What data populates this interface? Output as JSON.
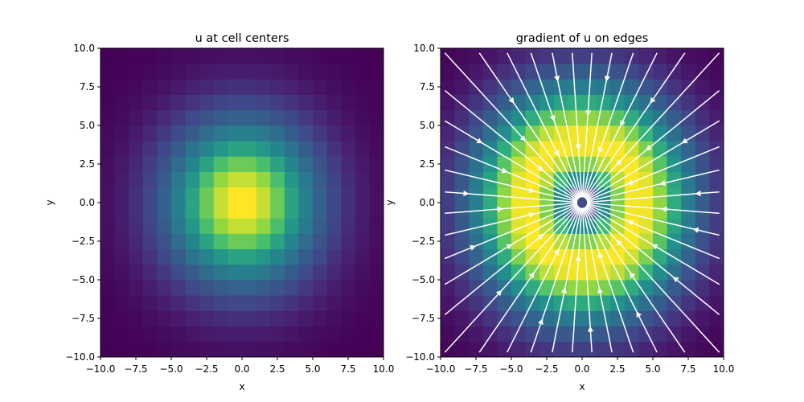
{
  "chart_data": [
    {
      "type": "heatmap",
      "title": "u at cell centers",
      "xlabel": "x",
      "ylabel": "y",
      "xlim": [
        -10,
        10
      ],
      "ylim": [
        -10,
        10
      ],
      "xticks": [
        "−10.0",
        "−7.5",
        "−5.0",
        "−2.5",
        "0.0",
        "2.5",
        "5.0",
        "7.5",
        "10.0"
      ],
      "yticks": [
        "−10.0",
        "−7.5",
        "−5.0",
        "−2.5",
        "0.0",
        "2.5",
        "5.0",
        "7.5",
        "10.0"
      ],
      "grid_cells": [
        20,
        20
      ],
      "field": "gaussian centered at (0, 0), peak value 1 at origin",
      "colormap": "viridis",
      "grid": false
    },
    {
      "type": "heatmap",
      "title": "gradient of u on edges",
      "xlabel": "x",
      "ylabel": "y",
      "xlim": [
        -10,
        10
      ],
      "ylim": [
        -10,
        10
      ],
      "xticks": [
        "−10.0",
        "−7.5",
        "−5.0",
        "−2.5",
        "0.0",
        "2.5",
        "5.0",
        "7.5",
        "10.0"
      ],
      "yticks": [
        "−10.0",
        "−7.5",
        "−5.0",
        "−2.5",
        "0.0",
        "2.5",
        "5.0",
        "7.5",
        "10.0"
      ],
      "grid_cells": [
        20,
        20
      ],
      "field": "gradient magnitude of the gaussian, ring-shaped maximum around radius ≈ 3",
      "colormap": "viridis",
      "overlay": "white streamlines with arrows pointing inward toward the origin",
      "grid": false
    }
  ],
  "colors": {
    "background": "#ffffff",
    "streamline": "#ffffff"
  }
}
